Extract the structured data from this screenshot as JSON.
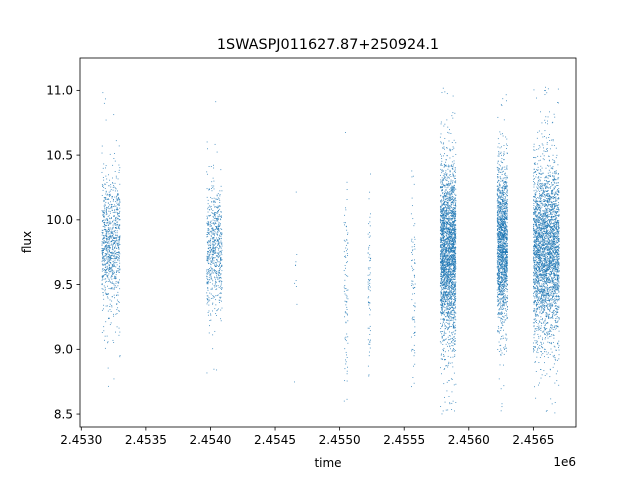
{
  "chart_data": {
    "type": "scatter",
    "title": "1SWASPJ011627.87+250924.1",
    "xlabel": "time",
    "ylabel": "flux",
    "x_offset_label": "1e6",
    "xlim": [
      2.45299,
      2.45683
    ],
    "ylim": [
      8.4,
      11.25
    ],
    "x_ticks": [
      2.453,
      2.4535,
      2.454,
      2.4545,
      2.455,
      2.4555,
      2.456,
      2.4565
    ],
    "x_tick_labels": [
      "2.4530",
      "2.4535",
      "2.4540",
      "2.4545",
      "2.4550",
      "2.4555",
      "2.4560",
      "2.4565"
    ],
    "y_ticks": [
      8.5,
      9.0,
      9.5,
      10.0,
      10.5,
      11.0
    ],
    "y_tick_labels": [
      "8.5",
      "9.0",
      "9.5",
      "10.0",
      "10.5",
      "11.0"
    ],
    "grid": false,
    "marker_color": "#1f77b4",
    "series": [
      {
        "clusters": [
          {
            "x_center": 2.45323,
            "x_width": 0.00014,
            "y_mean": 9.82,
            "y_sd": 0.25,
            "n": 900,
            "y_min": 8.52,
            "y_max": 11.03
          },
          {
            "x_center": 2.45403,
            "x_width": 0.00012,
            "y_mean": 9.78,
            "y_sd": 0.24,
            "n": 650,
            "y_min": 8.6,
            "y_max": 10.98
          },
          {
            "x_center": 2.45466,
            "x_width": 2e-05,
            "y_mean": 9.7,
            "y_sd": 0.45,
            "n": 10,
            "y_min": 8.7,
            "y_max": 10.22
          },
          {
            "x_center": 2.45505,
            "x_width": 3e-05,
            "y_mean": 9.5,
            "y_sd": 0.4,
            "n": 90,
            "y_min": 8.57,
            "y_max": 10.7
          },
          {
            "x_center": 2.45523,
            "x_width": 2e-05,
            "y_mean": 9.55,
            "y_sd": 0.35,
            "n": 70,
            "y_min": 8.72,
            "y_max": 10.38
          },
          {
            "x_center": 2.45557,
            "x_width": 3e-05,
            "y_mean": 9.5,
            "y_sd": 0.35,
            "n": 80,
            "y_min": 8.7,
            "y_max": 10.38
          },
          {
            "x_center": 2.45584,
            "x_width": 0.00012,
            "y_mean": 9.75,
            "y_sd": 0.33,
            "n": 2600,
            "y_min": 8.5,
            "y_max": 11.04
          },
          {
            "x_center": 2.45626,
            "x_width": 8e-05,
            "y_mean": 9.8,
            "y_sd": 0.3,
            "n": 1700,
            "y_min": 8.52,
            "y_max": 11.0
          },
          {
            "x_center": 2.4566,
            "x_width": 0.0002,
            "y_mean": 9.75,
            "y_sd": 0.32,
            "n": 3200,
            "y_min": 8.5,
            "y_max": 11.04
          }
        ]
      }
    ]
  }
}
